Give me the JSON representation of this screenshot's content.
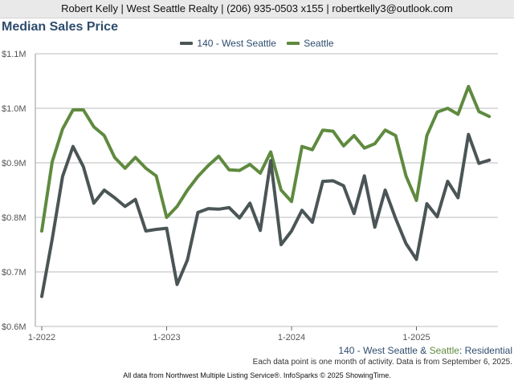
{
  "header": {
    "agent_line": "Robert Kelly | West Seattle Realty | (206) 935-0503 x155 | robertkelly3@outlook.com"
  },
  "chart_title": "Median Sales Price",
  "footer": {
    "region_part1": "140 - West Seattle",
    "region_amp": " & ",
    "region_part2": "Seattle",
    "region_part3": ": Residential",
    "note": "Each data point is one month of activity. Data is from September 6, 2025.",
    "source": "All data from Northwest Multiple Listing Service®. InfoSparks © 2025 ShowingTime."
  },
  "colors": {
    "west_seattle": "#4b5556",
    "seattle": "#5f8a3f",
    "title": "#2e4c6d",
    "grid": "#bbbbbb"
  },
  "chart_data": {
    "type": "line",
    "x_axis_ticks": [
      "1-2022",
      "1-2023",
      "1-2024",
      "1-2025"
    ],
    "y_axis_ticks": [
      "$0.6M",
      "$0.7M",
      "$0.8M",
      "$0.9M",
      "$1.0M",
      "$1.1M"
    ],
    "ylim": [
      600000,
      1100000
    ],
    "x_start": "2022-01",
    "grid": true,
    "legend_position": "top-center",
    "series": [
      {
        "name": "140 - West Seattle",
        "color": "#4b5556",
        "values": [
          655000,
          760000,
          875000,
          930000,
          893000,
          826000,
          850000,
          836000,
          820000,
          833000,
          775000,
          778000,
          780000,
          677000,
          722000,
          809000,
          816000,
          815000,
          818000,
          799000,
          826000,
          776000,
          904000,
          750000,
          775000,
          813000,
          791000,
          866000,
          867000,
          858000,
          807000,
          876000,
          782000,
          850000,
          798000,
          752000,
          723000,
          825000,
          801000,
          866000,
          836000,
          952000,
          899000,
          905000
        ]
      },
      {
        "name": "Seattle",
        "color": "#5f8a3f",
        "values": [
          775000,
          902000,
          962000,
          997000,
          997000,
          966000,
          950000,
          910000,
          890000,
          910000,
          890000,
          876000,
          800000,
          820000,
          850000,
          875000,
          895000,
          912000,
          887000,
          886000,
          897000,
          881000,
          920000,
          850000,
          829000,
          930000,
          924000,
          960000,
          958000,
          931000,
          950000,
          927000,
          935000,
          960000,
          950000,
          876000,
          831000,
          950000,
          993000,
          1000000,
          989000,
          1040000,
          994000,
          985000
        ]
      }
    ]
  }
}
